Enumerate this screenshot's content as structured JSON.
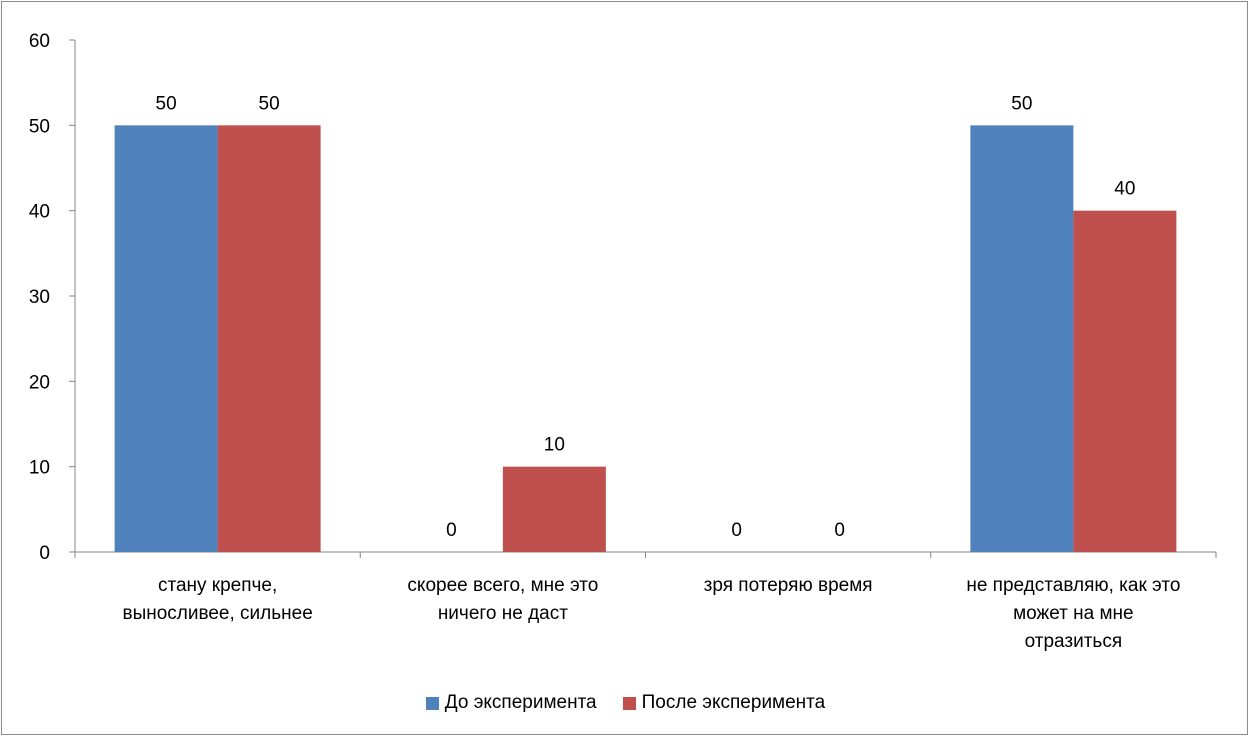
{
  "chart_data": {
    "type": "bar",
    "categories": [
      "стану крепче,\nвыносливее, сильнее",
      "скорее всего, мне это\nничего не даст",
      "зря потеряю время",
      "не представляю, как это\nможет на мне\nотразиться"
    ],
    "series": [
      {
        "name": "До эксперимента",
        "color": "#4f81bd",
        "values": [
          50,
          0,
          0,
          50
        ]
      },
      {
        "name": "После эксперимента",
        "color": "#c0504d",
        "values": [
          50,
          10,
          0,
          40
        ]
      }
    ],
    "ylim": [
      0,
      60
    ],
    "yticks": [
      "0",
      "10",
      "20",
      "30",
      "40",
      "50",
      "60"
    ],
    "data_labels": true,
    "grid": false,
    "legend_position": "bottom"
  }
}
